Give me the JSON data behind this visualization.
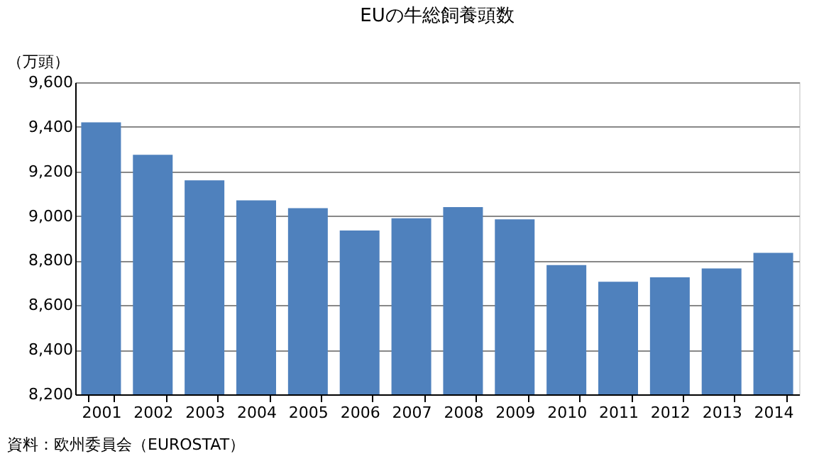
{
  "chart_data": {
    "type": "bar",
    "title": "EUの牛総飼養頭数",
    "ylabel": "（万頭）",
    "categories": [
      "2001",
      "2002",
      "2003",
      "2004",
      "2005",
      "2006",
      "2007",
      "2008",
      "2009",
      "2010",
      "2011",
      "2012",
      "2013",
      "2014"
    ],
    "values": [
      9420,
      9275,
      9160,
      9070,
      9035,
      8935,
      8990,
      9040,
      8985,
      8780,
      8705,
      8725,
      8765,
      8835
    ],
    "color": "#4f81bd",
    "ylim": [
      8200,
      9600
    ],
    "yticks": [
      {
        "value": 8200,
        "label": "8,200"
      },
      {
        "value": 8400,
        "label": "8,400"
      },
      {
        "value": 8600,
        "label": "8,600"
      },
      {
        "value": 8800,
        "label": "8,800"
      },
      {
        "value": 9000,
        "label": "9,000"
      },
      {
        "value": 9200,
        "label": "9,200"
      },
      {
        "value": 9400,
        "label": "9,400"
      },
      {
        "value": 9600,
        "label": "9,600"
      }
    ],
    "grid": "y",
    "annotations": [
      "資料：欧州委員会（EUROSTAT）"
    ]
  }
}
